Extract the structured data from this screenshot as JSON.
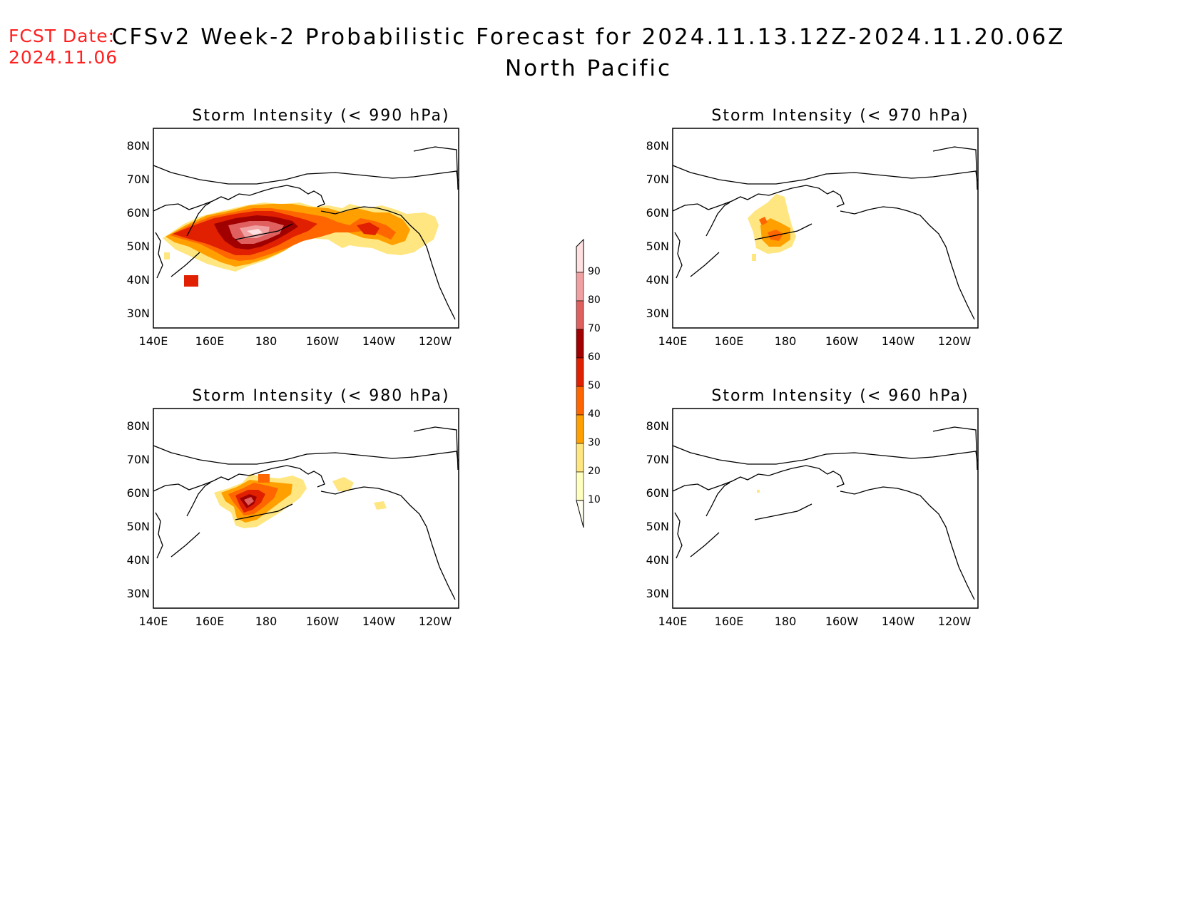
{
  "header": {
    "fcst_label": "FCST Date:",
    "fcst_date": "2024.11.06",
    "title": "CFSv2 Week-2 Probabilistic Forecast for 2024.11.13.12Z-2024.11.20.06Z",
    "region": "North Pacific"
  },
  "colors": {
    "fcst_text": "#ff2020",
    "levels": [
      "#ffffc0",
      "#ffe680",
      "#ffa000",
      "#ff6600",
      "#e02000",
      "#a00000",
      "#e06060",
      "#f0a0a0",
      "#ffe0e0"
    ]
  },
  "axes": {
    "x_ticks": [
      "140E",
      "160E",
      "180",
      "160W",
      "140W",
      "120W"
    ],
    "y_ticks": [
      "80N",
      "70N",
      "60N",
      "50N",
      "40N",
      "30N"
    ],
    "lon_range": "140E-110W",
    "lat_range": "25N-85N"
  },
  "panels": [
    {
      "title": "Storm Intensity (< 990 hPa)",
      "threshold_hpa": 990,
      "max_probability": 90
    },
    {
      "title": "Storm Intensity (< 970 hPa)",
      "threshold_hpa": 970,
      "max_probability": 40
    },
    {
      "title": "Storm Intensity (< 980 hPa)",
      "threshold_hpa": 980,
      "max_probability": 70
    },
    {
      "title": "Storm Intensity (< 960 hPa)",
      "threshold_hpa": 960,
      "max_probability": 10
    }
  ],
  "colorbar": {
    "labels": [
      "90",
      "80",
      "70",
      "60",
      "50",
      "40",
      "30",
      "20",
      "10"
    ]
  }
}
